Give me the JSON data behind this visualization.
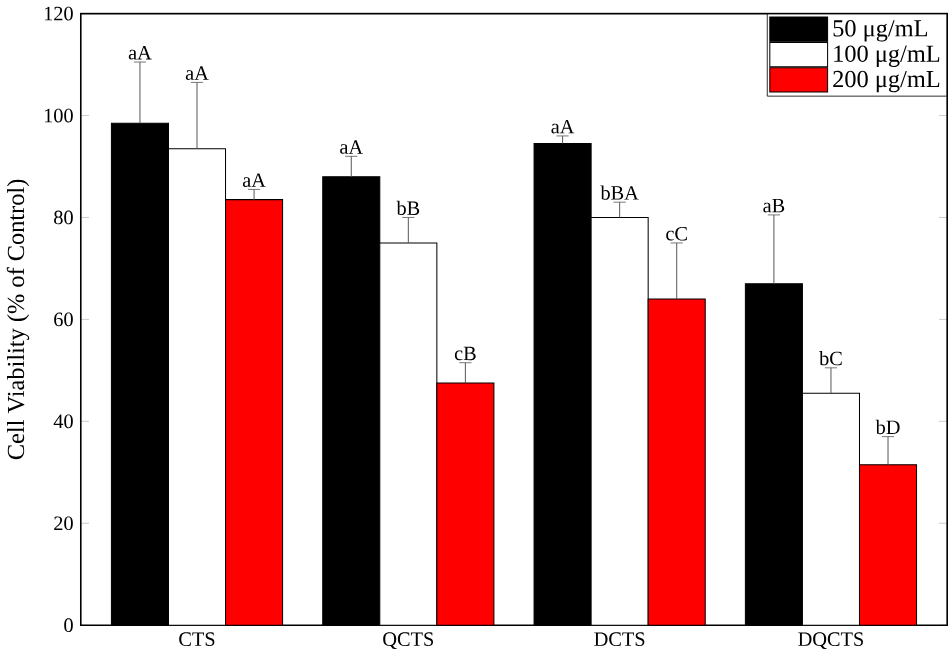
{
  "chart_data": {
    "type": "bar",
    "ylabel": "Cell Viability (% of Control)",
    "categories": [
      "CTS",
      "QCTS",
      "DCTS",
      "DQCTS"
    ],
    "series": [
      {
        "name": "50 μg/mL",
        "color": "#000000",
        "values": [
          98.5,
          88,
          94.5,
          67
        ],
        "errors": [
          12,
          4,
          1.5,
          13.5
        ]
      },
      {
        "name": "100 μg/mL",
        "color": "#ffffff",
        "values": [
          93.5,
          75,
          80,
          45.5
        ],
        "errors": [
          13,
          5,
          3,
          5
        ]
      },
      {
        "name": "200 μg/mL",
        "color": "#ff0000",
        "values": [
          83.5,
          47.5,
          64,
          31.5
        ],
        "errors": [
          2,
          4,
          11,
          5.5
        ]
      }
    ],
    "ylim": [
      0,
      120
    ],
    "yticks": [
      0,
      20,
      40,
      60,
      80,
      100,
      120
    ],
    "legend": "top right",
    "grid": false,
    "annotations": [
      "aA",
      "aA",
      "aA",
      "aA",
      "bB",
      "cB",
      "aA",
      "bBA",
      "cC",
      "aB",
      "bC",
      "bD"
    ]
  }
}
